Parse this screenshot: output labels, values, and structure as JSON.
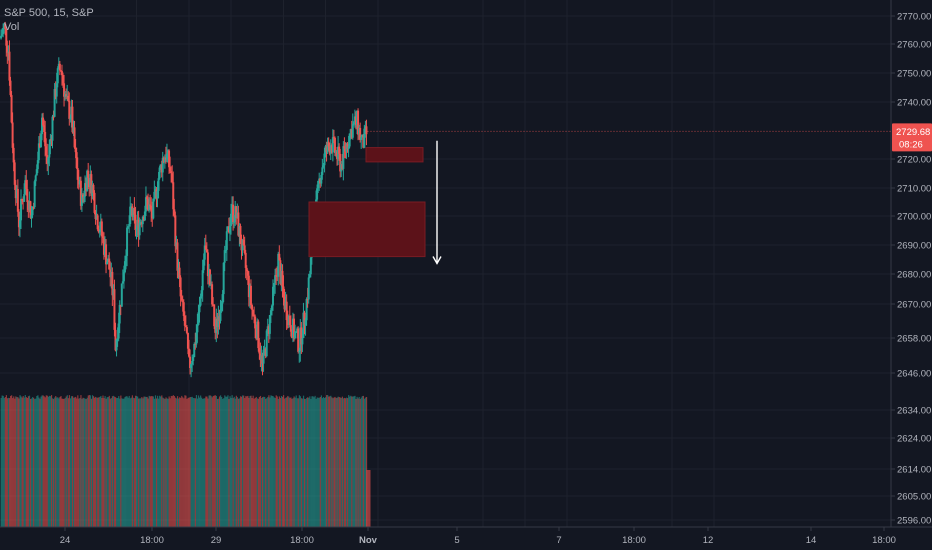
{
  "legend": {
    "symbol_line": "S&P 500, 15, S&P",
    "volume_label": "Vol"
  },
  "colors": {
    "background": "#131722",
    "grid": "#1e222d",
    "up": "#26a69a",
    "down": "#ef5350",
    "zone_fill": "#5c1219",
    "zone_stroke": "#7a1c24",
    "axis_text": "#b2b5be",
    "axis_line": "#363a45",
    "price_tag": "#ef5350",
    "arrow": "#ffffff"
  },
  "chart_data": {
    "type": "candlestick",
    "symbol": "S&P 500",
    "interval": "15",
    "exchange": "S&P",
    "price_axis": {
      "ticks": [
        2770.0,
        2760.0,
        2750.0,
        2740.0,
        2720.0,
        2710.0,
        2700.0,
        2690.0,
        2680.0,
        2670.0,
        2658.0,
        2646.0,
        2634.0,
        2624.0,
        2614.0,
        2605.0,
        2596.0
      ],
      "tick_labels": [
        "2770.00",
        "2760.00",
        "2750.00",
        "2740.00",
        "2720.00",
        "2710.00",
        "2700.00",
        "2690.00",
        "2680.00",
        "2670.00",
        "2658.00",
        "2646.00",
        "2634.00",
        "2624.00",
        "2614.00",
        "2605.00",
        "2596.00"
      ],
      "position": "right"
    },
    "time_axis": {
      "ticks": [
        {
          "label": "24",
          "t": 13
        },
        {
          "label": "18:00",
          "t": 18
        },
        {
          "label": "29",
          "t": 22
        },
        {
          "label": "18:00",
          "t": 27
        },
        {
          "label": "Nov",
          "t": 31
        },
        {
          "label": "5",
          "t": 36
        },
        {
          "label": "7",
          "t": 46
        },
        {
          "label": "18:00",
          "t": 50
        },
        {
          "label": "12",
          "t": 54
        },
        {
          "label": "14",
          "t": 64
        },
        {
          "label": "18:00",
          "t": 68
        }
      ]
    },
    "last_price": {
      "value": 2729.68,
      "label": "2729.68",
      "countdown": "08:26"
    },
    "price_path": [
      [
        0,
        2762
      ],
      [
        0.4,
        2766
      ],
      [
        0.8,
        2758
      ],
      [
        1.3,
        2718
      ],
      [
        1.8,
        2698
      ],
      [
        2.4,
        2712
      ],
      [
        3.0,
        2700
      ],
      [
        3.6,
        2720
      ],
      [
        4.0,
        2735
      ],
      [
        4.5,
        2718
      ],
      [
        4.9,
        2730
      ],
      [
        5.4,
        2748
      ],
      [
        5.8,
        2752
      ],
      [
        6.3,
        2740
      ],
      [
        6.8,
        2735
      ],
      [
        7.3,
        2716
      ],
      [
        7.8,
        2705
      ],
      [
        8.3,
        2715
      ],
      [
        8.8,
        2710
      ],
      [
        9.2,
        2700
      ],
      [
        9.6,
        2695
      ],
      [
        10.0,
        2688
      ],
      [
        10.4,
        2682
      ],
      [
        10.8,
        2672
      ],
      [
        11.0,
        2655
      ],
      [
        11.5,
        2672
      ],
      [
        12.0,
        2690
      ],
      [
        12.5,
        2702
      ],
      [
        13.0,
        2695
      ],
      [
        13.5,
        2700
      ],
      [
        14.0,
        2705
      ],
      [
        14.5,
        2700
      ],
      [
        15.0,
        2712
      ],
      [
        15.5,
        2720
      ],
      [
        15.8,
        2722
      ],
      [
        16.3,
        2715
      ],
      [
        16.8,
        2688
      ],
      [
        17.2,
        2672
      ],
      [
        17.7,
        2660
      ],
      [
        18.0,
        2648
      ],
      [
        18.5,
        2655
      ],
      [
        19.0,
        2668
      ],
      [
        19.5,
        2690
      ],
      [
        20.0,
        2677
      ],
      [
        20.5,
        2660
      ],
      [
        21.0,
        2670
      ],
      [
        21.5,
        2688
      ],
      [
        22.0,
        2702
      ],
      [
        22.5,
        2700
      ],
      [
        23.0,
        2690
      ],
      [
        23.5,
        2680
      ],
      [
        24.0,
        2668
      ],
      [
        24.5,
        2660
      ],
      [
        25.0,
        2648
      ],
      [
        25.5,
        2660
      ],
      [
        26.0,
        2672
      ],
      [
        26.5,
        2685
      ],
      [
        27.0,
        2672
      ],
      [
        27.5,
        2665
      ],
      [
        28.0,
        2660
      ],
      [
        28.5,
        2656
      ],
      [
        29.0,
        2665
      ],
      [
        29.5,
        2680
      ],
      [
        30.0,
        2700
      ],
      [
        30.5,
        2715
      ],
      [
        31.0,
        2722
      ],
      [
        31.5,
        2726
      ],
      [
        32.0,
        2722
      ],
      [
        32.5,
        2718
      ],
      [
        33.0,
        2725
      ],
      [
        33.5,
        2731
      ],
      [
        34.0,
        2733
      ],
      [
        34.5,
        2725
      ],
      [
        35.0,
        2729.68
      ]
    ],
    "volume_bars": "present",
    "annotations": [
      {
        "type": "zone",
        "price_top": 2724,
        "price_bottom": 2719
      },
      {
        "type": "zone",
        "price_top": 2705,
        "price_bottom": 2686
      },
      {
        "type": "arrow",
        "direction": "down",
        "price_from": 2725,
        "price_to": 2685
      }
    ],
    "grid": true
  }
}
